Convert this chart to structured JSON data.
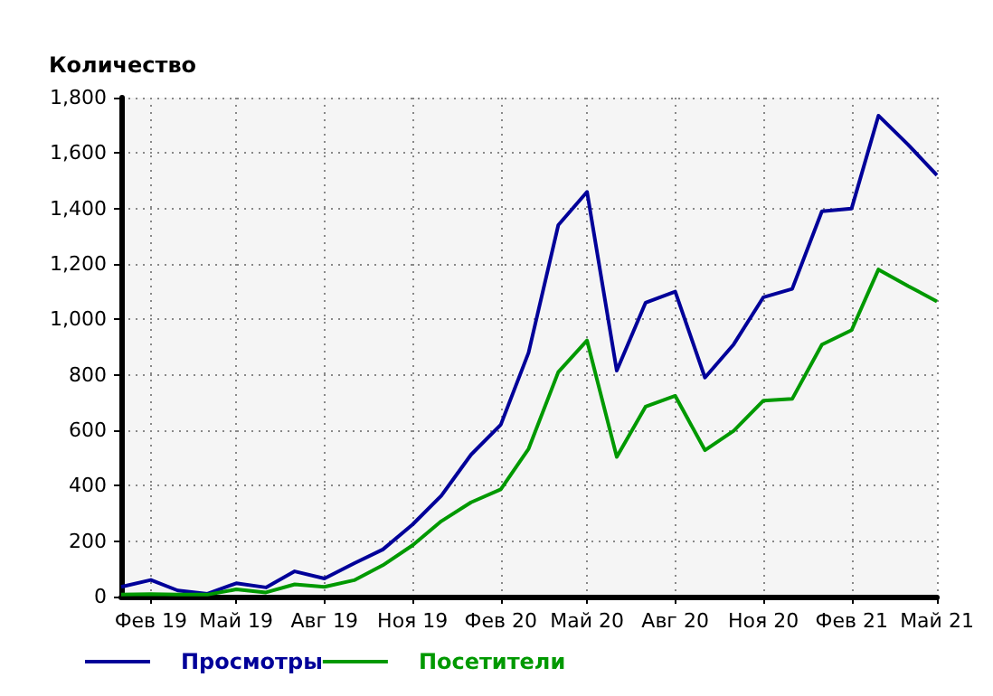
{
  "chart_data": {
    "type": "line",
    "ylabel": "Количество",
    "x": [
      "2019-01",
      "2019-02",
      "2019-03",
      "2019-04",
      "2019-05",
      "2019-06",
      "2019-07",
      "2019-08",
      "2019-09",
      "2019-10",
      "2019-11",
      "2019-12",
      "2020-01",
      "2020-02",
      "2020-03",
      "2020-04",
      "2020-05",
      "2020-06",
      "2020-07",
      "2020-08",
      "2020-09",
      "2020-10",
      "2020-11",
      "2020-12",
      "2021-01",
      "2021-02",
      "2021-03",
      "2021-04",
      "2021-05"
    ],
    "series": [
      {
        "name": "Просмотры",
        "color": "#000099",
        "values": [
          35,
          60,
          22,
          10,
          48,
          33,
          91,
          65,
          120,
          170,
          260,
          364,
          512,
          620,
          880,
          1340,
          1460,
          815,
          1060,
          1100,
          790,
          910,
          1080,
          1110,
          1390,
          1400,
          1735,
          1630,
          1520
        ]
      },
      {
        "name": "Посетители",
        "color": "#009900",
        "values": [
          7,
          9,
          7,
          7,
          26,
          15,
          44,
          35,
          59,
          113,
          185,
          272,
          340,
          387,
          533,
          810,
          924,
          504,
          685,
          724,
          528,
          598,
          707,
          713,
          909,
          961,
          1180,
          1120,
          1065
        ]
      }
    ],
    "xlim": [
      "2019-01",
      "2021-05"
    ],
    "xticks": [
      {
        "value": "2019-02",
        "label": "Фев 19"
      },
      {
        "value": "2019-05",
        "label": "Май 19"
      },
      {
        "value": "2019-08",
        "label": "Авг 19"
      },
      {
        "value": "2019-11",
        "label": "Ноя 19"
      },
      {
        "value": "2020-02",
        "label": "Фев 20"
      },
      {
        "value": "2020-05",
        "label": "Май 20"
      },
      {
        "value": "2020-08",
        "label": "Авг 20"
      },
      {
        "value": "2020-11",
        "label": "Ноя 20"
      },
      {
        "value": "2021-02",
        "label": "Фев 21"
      },
      {
        "value": "2021-05",
        "label": "Май 21"
      }
    ],
    "ylim": [
      0,
      1800
    ],
    "yticks": [
      0,
      200,
      400,
      600,
      800,
      {
        "value": 1000,
        "label": "1,000"
      },
      {
        "value": 1200,
        "label": "1,200"
      },
      {
        "value": 1400,
        "label": "1,400"
      },
      {
        "value": 1600,
        "label": "1,600"
      },
      {
        "value": 1800,
        "label": "1,800"
      }
    ],
    "grid": true,
    "legend": "bottom left",
    "marker": "none",
    "line_style": "solid"
  }
}
